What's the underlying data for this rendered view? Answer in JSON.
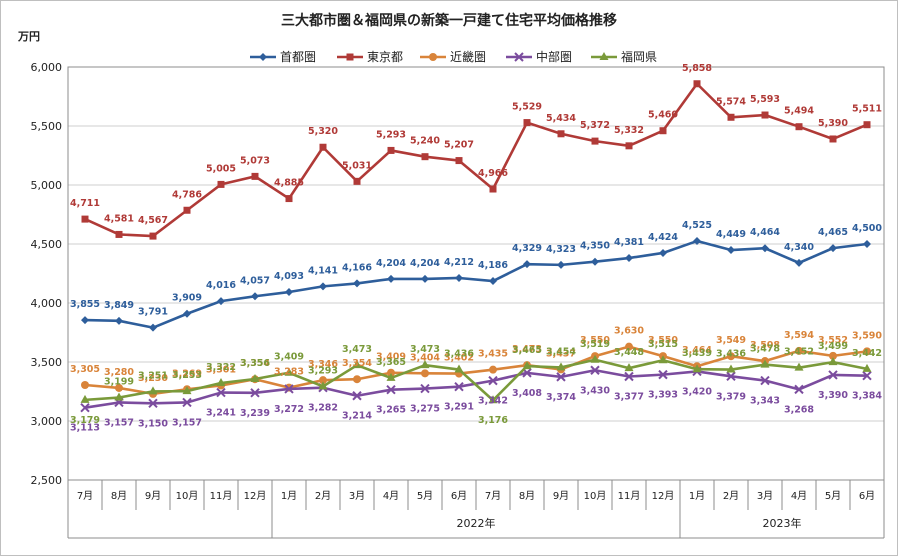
{
  "chart_data": {
    "type": "line",
    "title": "三大都市圏＆福岡県の新築一戸建て住宅平均価格推移",
    "unit": "万円",
    "ylim": [
      2500,
      6000
    ],
    "yticks": [
      "2,500",
      "3,000",
      "3,500",
      "4,000",
      "4,500",
      "5,000",
      "5,500",
      "6,000"
    ],
    "grid": true,
    "legend": "top",
    "categories": [
      "7月",
      "8月",
      "9月",
      "10月",
      "11月",
      "12月",
      "1月",
      "2月",
      "3月",
      "4月",
      "5月",
      "6月",
      "7月",
      "8月",
      "9月",
      "10月",
      "11月",
      "12月",
      "1月",
      "2月",
      "3月",
      "4月",
      "5月",
      "6月"
    ],
    "years": [
      {
        "label": "2022年",
        "from": 6,
        "to": 17
      },
      {
        "label": "2023年",
        "from": 18,
        "to": 23
      }
    ],
    "series": [
      {
        "name": "首都圏",
        "color": "#2E5E9B",
        "marker": "diamond",
        "values": [
          3855,
          3849,
          3791,
          3909,
          4016,
          4057,
          4093,
          4141,
          4166,
          4204,
          4204,
          4212,
          4186,
          4329,
          4323,
          4350,
          4381,
          4424,
          4525,
          4449,
          4464,
          4340,
          4465,
          4500
        ],
        "labels": [
          "3,855",
          "3,849",
          "3,791",
          "3,909",
          "4,016",
          "4,057",
          "4,093",
          "4,141",
          "4,166",
          "4,204",
          "4,204",
          "4,212",
          "4,186",
          "4,329",
          "4,323",
          "4,350",
          "4,381",
          "4,424",
          "4,525",
          "4,449",
          "4,464",
          "4,340",
          "4,465",
          "4,500"
        ]
      },
      {
        "name": "東京都",
        "color": "#B03A37",
        "marker": "square",
        "values": [
          4711,
          4581,
          4567,
          4786,
          5005,
          5073,
          4885,
          5320,
          5031,
          5293,
          5240,
          5207,
          4966,
          5529,
          5434,
          5372,
          5332,
          5460,
          5858,
          5574,
          5593,
          5494,
          5390,
          5511
        ],
        "labels": [
          "4,711",
          "4,581",
          "4,567",
          "4,786",
          "5,005",
          "5,073",
          "4,885",
          "5,320",
          "5,031",
          "5,293",
          "5,240",
          "5,207",
          "4,966",
          "5,529",
          "5,434",
          "5,372",
          "5,332",
          "5,460",
          "5,858",
          "5,574",
          "5,593",
          "5,494",
          "5,390",
          "5,511"
        ]
      },
      {
        "name": "近畿圏",
        "color": "#D9843A",
        "marker": "circle",
        "values": [
          3305,
          3280,
          3230,
          3269,
          3301,
          3354,
          3283,
          3346,
          3354,
          3409,
          3404,
          3402,
          3435,
          3473,
          3437,
          3550,
          3630,
          3550,
          3464,
          3549,
          3508,
          3594,
          3552,
          3590
        ],
        "labels": [
          "3,305",
          "3,280",
          "3,230",
          "3,269",
          "3,301",
          "3,354",
          "3,283",
          "3,346",
          "3,354",
          "3,409",
          "3,404",
          "3,402",
          "3,435",
          "3,473",
          "3,437",
          "3,550",
          "3,630",
          "3,550",
          "3,464",
          "3,549",
          "3,508",
          "3,594",
          "3,552",
          "3,590"
        ]
      },
      {
        "name": "中部圏",
        "color": "#7B4C9E",
        "marker": "x",
        "values": [
          3113,
          3157,
          3150,
          3157,
          3241,
          3239,
          3272,
          3282,
          3214,
          3265,
          3275,
          3291,
          3342,
          3408,
          3374,
          3430,
          3377,
          3393,
          3420,
          3379,
          3343,
          3268,
          3390,
          3384
        ],
        "labels": [
          "3,113",
          "3,157",
          "3,150",
          "3,157",
          "3,241",
          "3,239",
          "3,272",
          "3,282",
          "3,214",
          "3,265",
          "3,275",
          "3,291",
          "3,342",
          "3,408",
          "3,374",
          "3,430",
          "3,377",
          "3,393",
          "3,420",
          "3,379",
          "3,343",
          "3,268",
          "3,390",
          "3,384"
        ]
      },
      {
        "name": "福岡県",
        "color": "#7A9A3A",
        "marker": "triangle",
        "values": [
          3179,
          3199,
          3251,
          3253,
          3322,
          3356,
          3409,
          3293,
          3473,
          3365,
          3473,
          3436,
          3176,
          3465,
          3454,
          3519,
          3448,
          3515,
          3439,
          3436,
          3478,
          3452,
          3499,
          3442
        ],
        "labels": [
          "3,179",
          "3,199",
          "3,251",
          "3,253",
          "3,322",
          "3,356",
          "3,409",
          "3,293",
          "3,473",
          "3,365",
          "3,473",
          "3,436",
          "3,176",
          "3,465",
          "3,454",
          "3,519",
          "3,448",
          "3,515",
          "3,439",
          "3,436",
          "3,478",
          "3,452",
          "3,499",
          "3,442"
        ]
      }
    ]
  }
}
